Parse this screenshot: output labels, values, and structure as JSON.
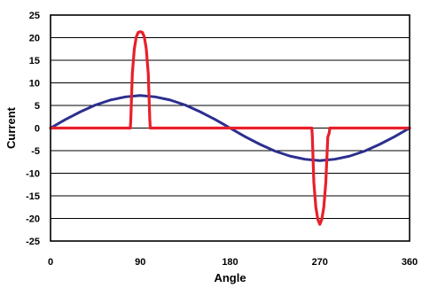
{
  "chart_data": {
    "type": "line",
    "title": "",
    "xlabel": "Angle",
    "ylabel": "Current",
    "xlim": [
      0,
      360
    ],
    "ylim": [
      -25,
      25
    ],
    "x_ticks": [
      0,
      90,
      180,
      270,
      360
    ],
    "x_tick_labels": [
      "0",
      "90",
      "180",
      "270",
      "360"
    ],
    "y_ticks": [
      25,
      20,
      15,
      10,
      5,
      0,
      -5,
      -10,
      -15,
      -20,
      -25
    ],
    "y_tick_labels": [
      "25",
      "20",
      "15",
      "10",
      "5",
      "0",
      "-5",
      "-10",
      "-15",
      "-20",
      "-25"
    ],
    "grid": "horizontal",
    "legend": "none",
    "series": [
      {
        "color": "#2b2f8f",
        "x": [
          0,
          15,
          30,
          45,
          60,
          75,
          90,
          105,
          120,
          135,
          150,
          165,
          180,
          195,
          210,
          225,
          240,
          255,
          270,
          285,
          300,
          315,
          330,
          345,
          360
        ],
        "y": [
          0,
          1.9,
          3.6,
          5.1,
          6.2,
          6.9,
          7.2,
          6.9,
          6.2,
          5.1,
          3.6,
          1.9,
          0,
          -1.9,
          -3.6,
          -5.1,
          -6.2,
          -6.9,
          -7.2,
          -6.9,
          -6.2,
          -5.1,
          -3.6,
          -1.9,
          0
        ]
      },
      {
        "color": "#e8202a",
        "x": [
          0,
          80,
          80.5,
          82,
          84,
          86,
          88,
          90,
          92,
          94,
          96,
          98,
          99.5,
          100,
          102,
          103,
          258,
          262,
          262.5,
          264,
          266,
          268,
          270,
          272,
          274,
          276,
          278,
          279.5,
          280,
          360
        ],
        "y": [
          0,
          0,
          2,
          12,
          17.5,
          20.2,
          21.2,
          21.3,
          21.2,
          20.2,
          17.5,
          12,
          2,
          0,
          0,
          0,
          0,
          0,
          -2,
          -12,
          -17.5,
          -20.2,
          -21.3,
          -20.2,
          -17.5,
          -12,
          -2,
          -1,
          0,
          0
        ]
      }
    ]
  }
}
